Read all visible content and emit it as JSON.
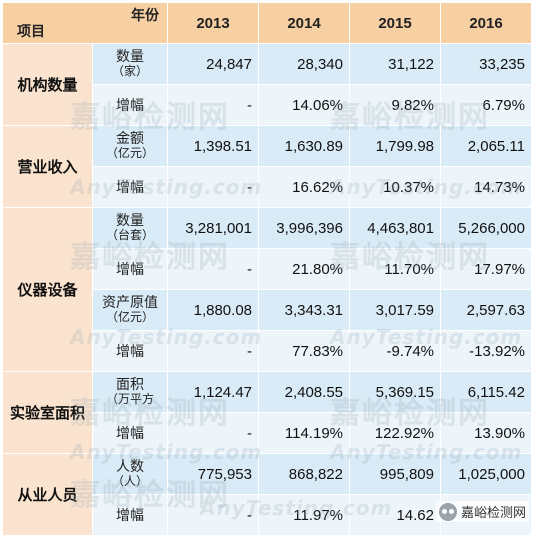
{
  "header": {
    "item_label": "项目",
    "year_label": "年份",
    "years": [
      "2013",
      "2014",
      "2015",
      "2016"
    ]
  },
  "groups": [
    {
      "name": "机构数量",
      "rows": [
        {
          "label": "数量",
          "unit": "（家）",
          "values": [
            "24,847",
            "28,340",
            "31,122",
            "33,235"
          ]
        },
        {
          "label": "增幅",
          "unit": "",
          "values": [
            "-",
            "14.06%",
            "9.82%",
            "6.79%"
          ]
        }
      ]
    },
    {
      "name": "营业收入",
      "rows": [
        {
          "label": "金额",
          "unit": "（亿元）",
          "values": [
            "1,398.51",
            "1,630.89",
            "1,799.98",
            "2,065.11"
          ]
        },
        {
          "label": "增幅",
          "unit": "",
          "values": [
            "-",
            "16.62%",
            "10.37%",
            "14.73%"
          ]
        }
      ]
    },
    {
      "name": "仪器设备",
      "rows": [
        {
          "label": "数量",
          "unit": "（台套）",
          "values": [
            "3,281,001",
            "3,996,396",
            "4,463,801",
            "5,266,000"
          ]
        },
        {
          "label": "增幅",
          "unit": "",
          "values": [
            "-",
            "21.80%",
            "11.70%",
            "17.97%"
          ]
        },
        {
          "label": "资产原值",
          "unit": "（亿元）",
          "values": [
            "1,880.08",
            "3,343.31",
            "3,017.59",
            "2,597.63"
          ]
        },
        {
          "label": "增幅",
          "unit": "",
          "values": [
            "-",
            "77.83%",
            "-9.74%",
            "-13.92%"
          ]
        }
      ]
    },
    {
      "name": "实验室面积",
      "rows": [
        {
          "label": "面积",
          "unit": "（万平方",
          "values": [
            "1,124.47",
            "2,408.55",
            "5,369.15",
            "6,115.42"
          ]
        },
        {
          "label": "增幅",
          "unit": "",
          "values": [
            "-",
            "114.19%",
            "122.92%",
            "13.90%"
          ]
        }
      ]
    },
    {
      "name": "从业人员",
      "rows": [
        {
          "label": "人数",
          "unit": "（人）",
          "values": [
            "775,953",
            "868,822",
            "995,809",
            "1,025,000"
          ]
        },
        {
          "label": "增幅",
          "unit": "",
          "values": [
            "-",
            "11.97%",
            "14.62",
            ""
          ]
        }
      ]
    }
  ],
  "watermark": {
    "cn": "嘉峪检测网",
    "en": "AnyTesting.com"
  },
  "logo": {
    "text": "嘉峪检测网"
  }
}
